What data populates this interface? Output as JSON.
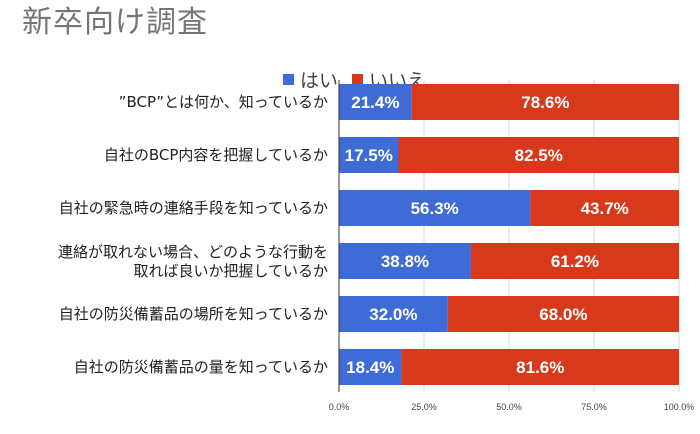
{
  "chart_data": {
    "type": "bar",
    "orientation": "horizontal",
    "stacked": true,
    "title": "新卒向け調査",
    "categories": [
      [
        "”BCP”とは何か、知っているか"
      ],
      [
        "自社のBCP内容を把握しているか"
      ],
      [
        "自社の緊急時の連絡手段を知っているか"
      ],
      [
        "連絡が取れない場合、どのような行動を",
        "取れば良いか把握しているか"
      ],
      [
        "自社の防災備蓄品の場所を知っているか"
      ],
      [
        "自社の防災備蓄品の量を知っているか"
      ]
    ],
    "series": [
      {
        "name": "はい",
        "color": "#3e6bd6",
        "values": [
          21.4,
          17.5,
          56.3,
          38.8,
          32.0,
          18.4
        ],
        "labels": [
          "21.4%",
          "17.5%",
          "56.3%",
          "38.8%",
          "32.0%",
          "18.4%"
        ]
      },
      {
        "name": "いいえ",
        "color": "#d9391b",
        "values": [
          78.6,
          82.5,
          43.7,
          61.2,
          68.0,
          81.6
        ],
        "labels": [
          "78.6%",
          "82.5%",
          "43.7%",
          "61.2%",
          "68.0%",
          "81.6%"
        ]
      }
    ],
    "xlim": [
      0,
      100
    ],
    "xticks": [
      0,
      25,
      50,
      75,
      100
    ],
    "xtick_labels": [
      "0.0%",
      "25.0%",
      "50.0%",
      "75.0%",
      "100.0%"
    ],
    "legend_position": "top",
    "grid": true
  }
}
